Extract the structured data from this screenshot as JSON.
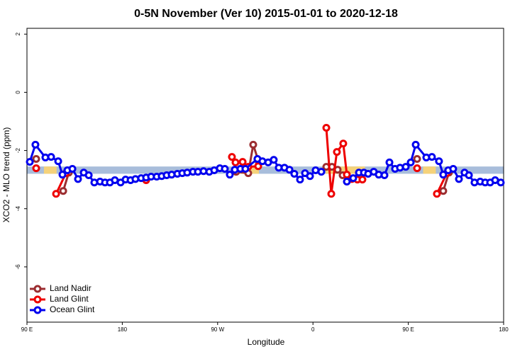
{
  "chart_data": {
    "type": "line",
    "title": "0-5N November (Ver 10)   2015-01-01 to 2020-12-18",
    "x_label": "Longitude",
    "y_label": "XCO2 - MLO trend (ppm)",
    "xlim": [
      90,
      540
    ],
    "ylim": [
      -7.9,
      2.2
    ],
    "xticks": [
      {
        "value": 90,
        "label": "90 E"
      },
      180,
      {
        "value": 270,
        "label": "90 W"
      },
      {
        "value": 360,
        "label": "0"
      },
      {
        "value": 450,
        "label": "90 E"
      },
      {
        "value": 540,
        "label": "180"
      }
    ],
    "yticks": [
      2,
      0,
      -2,
      -4,
      -6
    ],
    "legend": "bottom-left",
    "band": {
      "range": [
        -2.55,
        -2.8
      ],
      "color": "#a8bddb"
    },
    "highlights": {
      "color": "#f5d27a",
      "ranges": [
        [
          106,
          118
        ],
        [
          285,
          309
        ],
        [
          372,
          409
        ],
        [
          464,
          476
        ]
      ]
    },
    "series": [
      {
        "name": "Land Nadir",
        "color": "#9b2d30",
        "x": [
          98.7,
          null,
          124.2,
          129.5,
          null,
          287.5,
          298.9,
          303.6,
          309.0,
          null,
          372.6,
          377.9,
          383.3,
          388.0,
          null,
          458.3,
          null,
          483.0,
          488.4
        ],
        "values": [
          -2.29,
          null,
          -3.39,
          -2.76,
          null,
          -2.73,
          -2.78,
          -1.8,
          -2.41,
          null,
          -2.56,
          -2.56,
          -2.66,
          -2.85,
          null,
          -2.29,
          null,
          -3.39,
          -2.76
        ]
      },
      {
        "name": "Land Glint",
        "color": "#ee0000",
        "x": [
          98.7,
          null,
          117.5,
          126.8,
          null,
          202.5,
          null,
          283.5,
          286.9,
          293.6,
          298.9,
          308.3,
          null,
          372.6,
          377.3,
          382.6,
          388.6,
          392.0,
          396.7,
          402.0,
          406.7,
          null,
          458.3,
          null,
          477.0,
          486.4
        ],
        "values": [
          -2.61,
          null,
          -3.49,
          -2.78,
          null,
          -3.02,
          null,
          -2.22,
          -2.41,
          -2.39,
          -2.56,
          -2.54,
          null,
          -1.22,
          -3.49,
          -2.05,
          -1.76,
          -2.83,
          -2.98,
          -3.0,
          -3.0,
          null,
          -2.61,
          null,
          -3.49,
          -2.78
        ]
      },
      {
        "name": "Ocean Glint",
        "color": "#0000ee",
        "x": [
          92.7,
          98.0,
          107.4,
          112.8,
          119.5,
          123.5,
          128.2,
          132.9,
          138.2,
          143.6,
          148.3,
          153.6,
          159.0,
          163.7,
          168.3,
          173.0,
          178.4,
          183.1,
          187.8,
          192.4,
          197.8,
          202.5,
          207.2,
          212.5,
          217.2,
          221.9,
          226.6,
          232.0,
          236.6,
          241.3,
          246.7,
          251.4,
          256.7,
          262.1,
          266.8,
          272.1,
          276.8,
          281.5,
          286.2,
          291.5,
          296.2,
          307.6,
          312.3,
          317.7,
          323.0,
          327.7,
          333.1,
          337.8,
          342.4,
          347.8,
          352.5,
          357.2,
          362.5,
          367.9,
          null,
          392.0,
          398.0,
          403.4,
          408.1,
          412.1,
          417.4,
          422.1,
          427.5,
          432.2,
          437.5,
          442.2,
          447.6,
          452.3,
          457.0,
          467.0,
          472.3,
          479.0,
          483.0,
          487.7,
          492.4,
          497.8,
          503.1,
          507.2,
          512.5,
          517.9,
          522.6,
          527.3,
          532.0,
          537.3
        ],
        "values": [
          -2.39,
          -1.8,
          -2.24,
          -2.22,
          -2.37,
          -2.83,
          -2.68,
          -2.63,
          -2.98,
          -2.76,
          -2.85,
          -3.1,
          -3.07,
          -3.1,
          -3.1,
          -3.02,
          -3.1,
          -3.0,
          -3.02,
          -2.98,
          -2.95,
          -2.93,
          -2.9,
          -2.9,
          -2.88,
          -2.85,
          -2.83,
          -2.8,
          -2.78,
          -2.76,
          -2.73,
          -2.73,
          -2.71,
          -2.73,
          -2.68,
          -2.61,
          -2.63,
          -2.83,
          -2.66,
          -2.63,
          -2.63,
          -2.29,
          -2.37,
          -2.41,
          -2.32,
          -2.59,
          -2.59,
          -2.66,
          -2.8,
          -3.0,
          -2.78,
          -2.88,
          -2.68,
          -2.73,
          null,
          -3.07,
          -2.95,
          -2.76,
          -2.76,
          -2.8,
          -2.73,
          -2.83,
          -2.85,
          -2.41,
          -2.63,
          -2.59,
          -2.56,
          -2.41,
          -1.8,
          -2.24,
          -2.22,
          -2.37,
          -2.83,
          -2.68,
          -2.63,
          -2.98,
          -2.76,
          -2.85,
          -3.1,
          -3.07,
          -3.1,
          -3.1,
          -3.02,
          -3.1
        ]
      }
    ]
  }
}
